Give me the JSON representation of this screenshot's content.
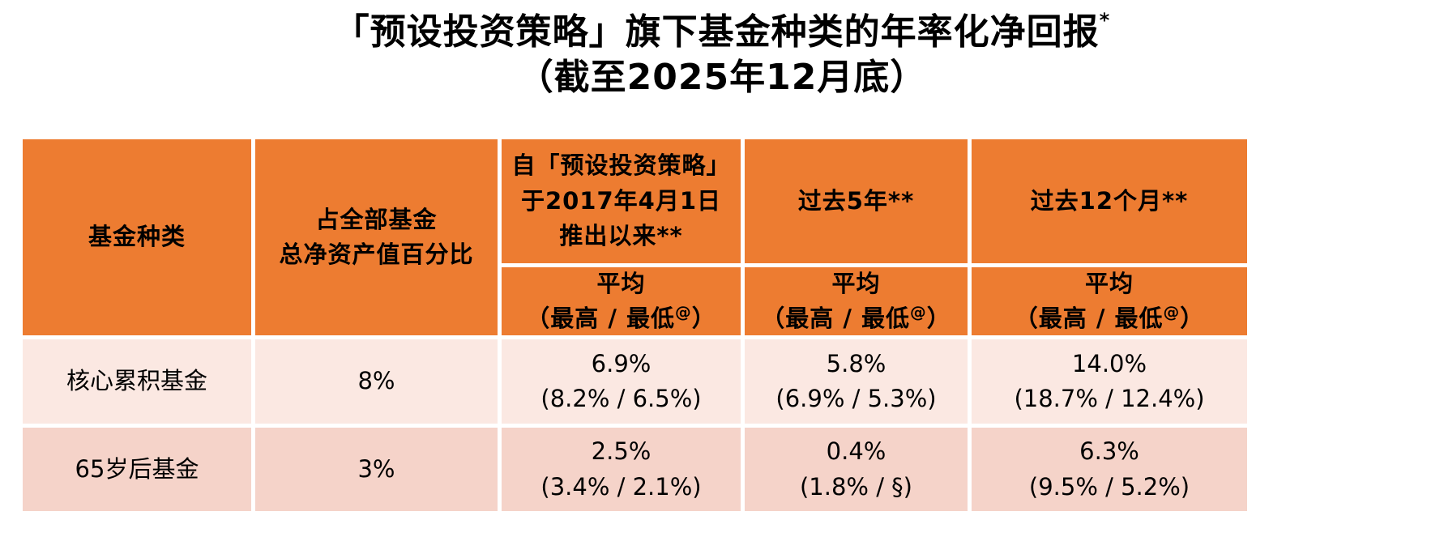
{
  "title": {
    "main": "「预设投资策略」旗下基金种类的年率化净回报",
    "main_sup": "*",
    "sub": "（截至2025年12月底）"
  },
  "table": {
    "header": {
      "fund_type": "基金种类",
      "nav_pct_lines": [
        "占全部基金",
        "总净资产值百分比"
      ],
      "since_launch_lines": [
        "自「预设投资策略」",
        "于2017年4月1日",
        "推出以来**"
      ],
      "past_5y": "过去5年**",
      "past_12m": "过去12个月**",
      "avg_label": "平均",
      "range_label_pre": "（最高 / 最低",
      "range_label_sup": "@",
      "range_label_post": "）"
    },
    "rows": [
      {
        "fund": "核心累积基金",
        "nav_pct": "8%",
        "since_avg": "6.9%",
        "since_range": "(8.2% / 6.5%)",
        "y5_avg": "5.8%",
        "y5_range": "(6.9% / 5.3%)",
        "m12_avg": "14.0%",
        "m12_range": "(18.7% / 12.4%)"
      },
      {
        "fund": "65岁后基金",
        "nav_pct": "3%",
        "since_avg": "2.5%",
        "since_range": "(3.4% / 2.1%)",
        "y5_avg": "0.4%",
        "y5_range": "(1.8% / §)",
        "m12_avg": "6.3%",
        "m12_range": "(9.5% / 5.2%)"
      }
    ],
    "colors": {
      "header_bg": "#ED7C31",
      "row_odd_bg": "#FBE8E2",
      "row_even_bg": "#F5D3C9"
    }
  }
}
